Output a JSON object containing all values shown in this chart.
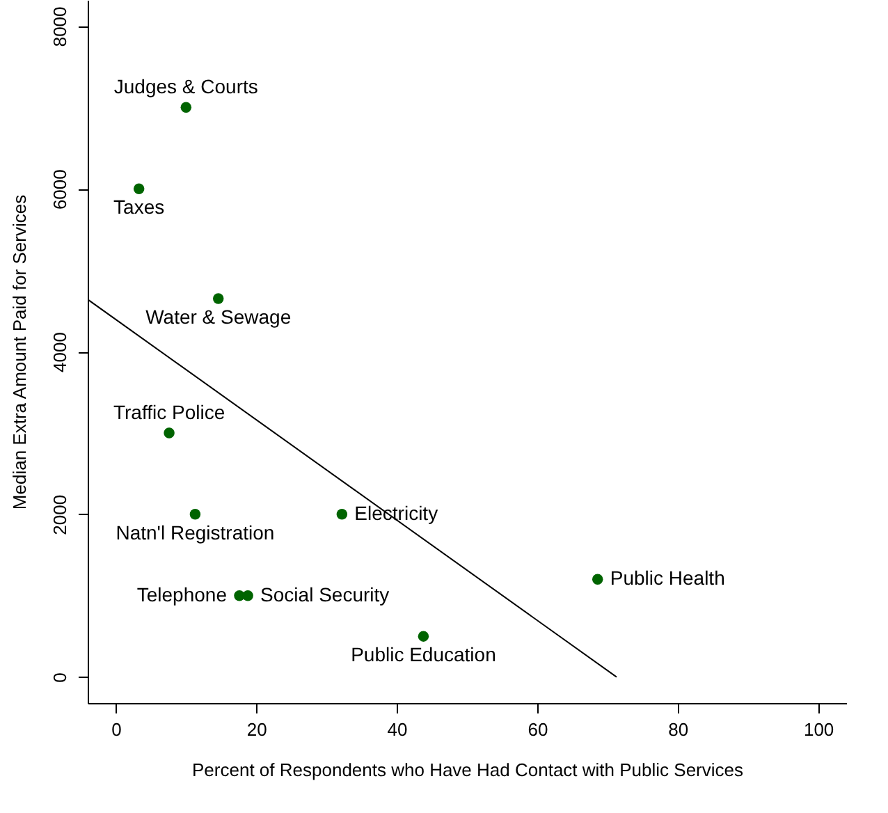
{
  "chart_data": {
    "type": "scatter",
    "xlabel": "Percent of Respondents who Have Had Contact with Public Services",
    "ylabel": "Median Extra Amount Paid for Services",
    "xlim": [
      -4,
      104
    ],
    "ylim": [
      -320,
      8320
    ],
    "xticks": [
      0,
      20,
      40,
      60,
      80,
      100
    ],
    "yticks": [
      0,
      2000,
      4000,
      6000,
      8000
    ],
    "series": [
      {
        "color": "#006400",
        "marker": "circle",
        "x": [
          10.0,
          3.3,
          14.6,
          7.6,
          11.3,
          32.2,
          17.6,
          18.8,
          43.8,
          68.6
        ],
        "values": [
          7000,
          6000,
          4650,
          3000,
          2000,
          2000,
          1000,
          1000,
          500,
          1200
        ]
      },
      {
        "type": "line",
        "color": "#000000",
        "x": [
          -4,
          71.3
        ],
        "values": [
          4640,
          0
        ]
      }
    ],
    "annotations": [
      {
        "text": "Judges & Courts",
        "x": 10.0,
        "y": 7000
      },
      {
        "text": "Taxes",
        "x": 3.3,
        "y": 6000
      },
      {
        "text": "Water & Sewage",
        "x": 14.6,
        "y": 4650
      },
      {
        "text": "Traffic Police",
        "x": 7.6,
        "y": 3000
      },
      {
        "text": "Natn'l Registration",
        "x": 11.3,
        "y": 2000
      },
      {
        "text": "Electricity",
        "x": 32.2,
        "y": 2000
      },
      {
        "text": "Telephone",
        "x": 17.6,
        "y": 1000
      },
      {
        "text": "Social Security",
        "x": 18.8,
        "y": 1000
      },
      {
        "text": "Public Education",
        "x": 43.8,
        "y": 500
      },
      {
        "text": "Public Health",
        "x": 68.6,
        "y": 1200
      }
    ]
  }
}
